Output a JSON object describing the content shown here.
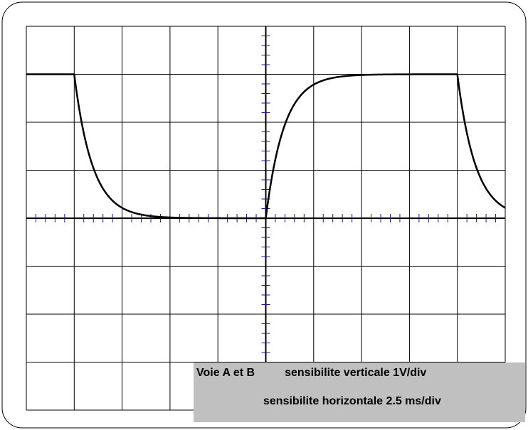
{
  "chart_data": {
    "type": "line",
    "title": "",
    "xlabel": "",
    "ylabel": "",
    "grid": true,
    "grid_divisions": {
      "horizontal": 10,
      "vertical": 8
    },
    "x_unit": "ms",
    "y_unit": "V",
    "xlim": [
      -12.5,
      12.5
    ],
    "ylim": [
      -4,
      4
    ],
    "series": [
      {
        "values": [
          {
            "x": -12.5,
            "y": 3
          },
          {
            "x": -10.0,
            "y": 3
          },
          {
            "x": -9.5,
            "y": 1.85
          },
          {
            "x": -9.0,
            "y": 1.14
          },
          {
            "x": -8.5,
            "y": 0.7
          },
          {
            "x": -8.0,
            "y": 0.43
          },
          {
            "x": -7.0,
            "y": 0.16
          },
          {
            "x": -6.0,
            "y": 0.06
          },
          {
            "x": -4.0,
            "y": 0.01
          },
          {
            "x": 0.0,
            "y": 0.0
          },
          {
            "x": 0.5,
            "y": 1.15
          },
          {
            "x": 1.0,
            "y": 1.86
          },
          {
            "x": 1.5,
            "y": 2.3
          },
          {
            "x": 2.0,
            "y": 2.57
          },
          {
            "x": 3.0,
            "y": 2.84
          },
          {
            "x": 4.0,
            "y": 2.94
          },
          {
            "x": 6.0,
            "y": 2.99
          },
          {
            "x": 10.0,
            "y": 3.0
          },
          {
            "x": 10.5,
            "y": 1.85
          },
          {
            "x": 11.0,
            "y": 1.14
          },
          {
            "x": 11.5,
            "y": 0.7
          },
          {
            "x": 12.0,
            "y": 0.43
          },
          {
            "x": 12.5,
            "y": 0.27
          }
        ]
      }
    ]
  },
  "caption": {
    "voie": "Voie A et B",
    "vertical": "sensibilite verticale 1V/div",
    "horizontal": "sensibilite horizontale 2.5 ms/div"
  }
}
